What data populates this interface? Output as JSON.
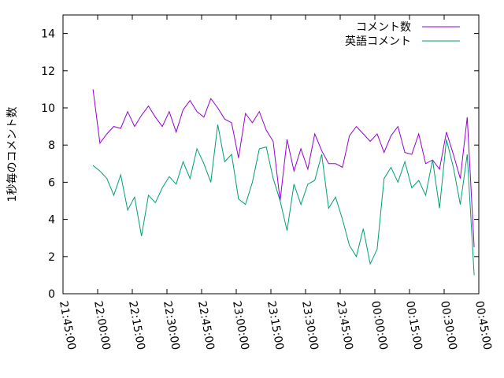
{
  "chart_data": {
    "type": "line",
    "ylabel": "1秒毎のコメント数",
    "x": [
      "21:58:00",
      "22:01:00",
      "22:04:00",
      "22:07:00",
      "22:10:00",
      "22:13:00",
      "22:16:00",
      "22:19:00",
      "22:22:00",
      "22:25:00",
      "22:28:00",
      "22:31:00",
      "22:34:00",
      "22:37:00",
      "22:40:00",
      "22:43:00",
      "22:46:00",
      "22:49:00",
      "22:52:00",
      "22:55:00",
      "22:58:00",
      "23:01:00",
      "23:04:00",
      "23:07:00",
      "23:10:00",
      "23:13:00",
      "23:16:00",
      "23:19:00",
      "23:22:00",
      "23:25:00",
      "23:28:00",
      "23:31:00",
      "23:34:00",
      "23:37:00",
      "23:40:00",
      "23:43:00",
      "23:46:00",
      "23:49:00",
      "23:52:00",
      "23:55:00",
      "23:58:00",
      "00:01:00",
      "00:04:00",
      "00:07:00",
      "00:10:00",
      "00:13:00",
      "00:16:00",
      "00:19:00",
      "00:22:00",
      "00:25:00",
      "00:28:00",
      "00:31:00",
      "00:34:00",
      "00:37:00",
      "00:40:00",
      "00:43:00"
    ],
    "series": [
      {
        "name": "コメント数",
        "color": "#9400d3",
        "values": [
          11.0,
          8.1,
          8.6,
          9.0,
          8.9,
          9.8,
          9.0,
          9.6,
          10.1,
          9.5,
          9.0,
          9.8,
          8.7,
          9.9,
          10.4,
          9.8,
          9.5,
          10.5,
          10.0,
          9.4,
          9.2,
          7.3,
          9.7,
          9.2,
          9.8,
          8.8,
          8.2,
          5.0,
          8.3,
          6.6,
          7.8,
          6.7,
          8.6,
          7.7,
          7.0,
          7.0,
          6.8,
          8.5,
          9.0,
          8.6,
          8.2,
          8.6,
          7.6,
          8.5,
          9.0,
          7.6,
          7.5,
          8.6,
          7.0,
          7.2,
          6.7,
          8.7,
          7.5,
          6.2,
          9.5,
          2.5
        ]
      },
      {
        "name": "英語コメント",
        "color": "#009e73",
        "values": [
          6.9,
          6.6,
          6.2,
          5.3,
          6.4,
          4.5,
          5.2,
          3.1,
          5.3,
          4.9,
          5.7,
          6.3,
          5.9,
          7.1,
          6.2,
          7.8,
          7.0,
          6.0,
          9.1,
          7.1,
          7.5,
          5.1,
          4.8,
          6.0,
          7.8,
          7.9,
          6.2,
          5.0,
          3.4,
          5.9,
          4.8,
          5.9,
          6.1,
          7.5,
          4.6,
          5.2,
          4.0,
          2.6,
          2.0,
          3.5,
          1.6,
          2.4,
          6.2,
          6.8,
          6.0,
          7.1,
          5.7,
          6.1,
          5.3,
          7.2,
          4.6,
          8.3,
          6.8,
          4.8,
          7.5,
          1.0
        ]
      }
    ],
    "xlim": [
      "21:45:00",
      "00:45:00"
    ],
    "xticks": [
      "21:45:00",
      "22:00:00",
      "22:15:00",
      "22:30:00",
      "22:45:00",
      "23:00:00",
      "23:15:00",
      "23:30:00",
      "23:45:00",
      "00:00:00",
      "00:15:00",
      "00:30:00",
      "00:45:00"
    ],
    "ylim": [
      0,
      15
    ],
    "yticks": [
      0,
      2,
      4,
      6,
      8,
      10,
      12,
      14
    ],
    "legend": "top-right"
  }
}
